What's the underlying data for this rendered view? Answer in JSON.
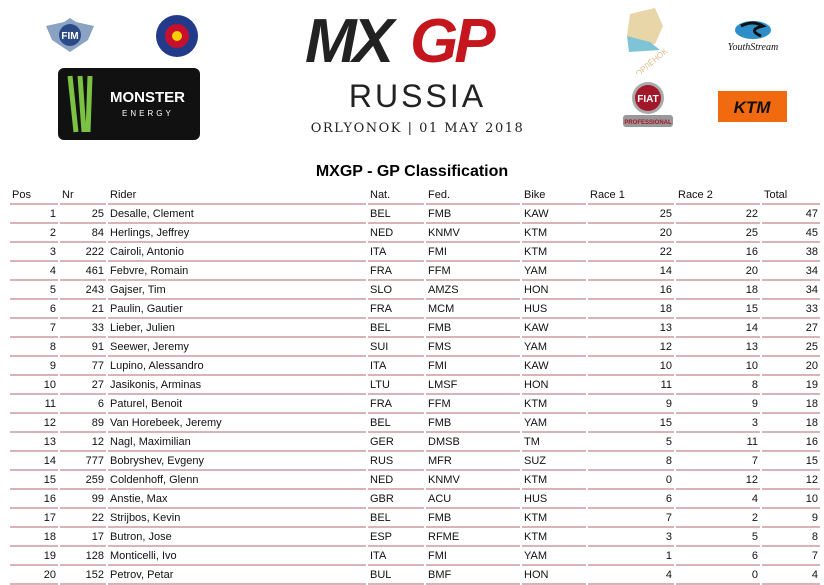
{
  "header": {
    "logo_text": "MXGP",
    "country": "RUSSIA",
    "venue_date": "ORLYONOK | 01 MAY 2018",
    "sponsors": [
      "FIM",
      "Monster Energy",
      "Orlyonok",
      "YouthStream",
      "Fiat Professional",
      "KTM"
    ]
  },
  "title": "MXGP - GP Classification",
  "columns": [
    "Pos",
    "Nr",
    "Rider",
    "Nat.",
    "Fed.",
    "Bike",
    "Race 1",
    "Race 2",
    "Total"
  ],
  "rows": [
    [
      "1",
      "25",
      "Desalle, Clement",
      "BEL",
      "FMB",
      "KAW",
      "25",
      "22",
      "47"
    ],
    [
      "2",
      "84",
      "Herlings, Jeffrey",
      "NED",
      "KNMV",
      "KTM",
      "20",
      "25",
      "45"
    ],
    [
      "3",
      "222",
      "Cairoli, Antonio",
      "ITA",
      "FMI",
      "KTM",
      "22",
      "16",
      "38"
    ],
    [
      "4",
      "461",
      "Febvre, Romain",
      "FRA",
      "FFM",
      "YAM",
      "14",
      "20",
      "34"
    ],
    [
      "5",
      "243",
      "Gajser, Tim",
      "SLO",
      "AMZS",
      "HON",
      "16",
      "18",
      "34"
    ],
    [
      "6",
      "21",
      "Paulin, Gautier",
      "FRA",
      "MCM",
      "HUS",
      "18",
      "15",
      "33"
    ],
    [
      "7",
      "33",
      "Lieber, Julien",
      "BEL",
      "FMB",
      "KAW",
      "13",
      "14",
      "27"
    ],
    [
      "8",
      "91",
      "Seewer, Jeremy",
      "SUI",
      "FMS",
      "YAM",
      "12",
      "13",
      "25"
    ],
    [
      "9",
      "77",
      "Lupino, Alessandro",
      "ITA",
      "FMI",
      "KAW",
      "10",
      "10",
      "20"
    ],
    [
      "10",
      "27",
      "Jasikonis, Arminas",
      "LTU",
      "LMSF",
      "HON",
      "11",
      "8",
      "19"
    ],
    [
      "11",
      "6",
      "Paturel, Benoit",
      "FRA",
      "FFM",
      "KTM",
      "9",
      "9",
      "18"
    ],
    [
      "12",
      "89",
      "Van Horebeek, Jeremy",
      "BEL",
      "FMB",
      "YAM",
      "15",
      "3",
      "18"
    ],
    [
      "13",
      "12",
      "Nagl, Maximilian",
      "GER",
      "DMSB",
      "TM",
      "5",
      "11",
      "16"
    ],
    [
      "14",
      "777",
      "Bobryshev, Evgeny",
      "RUS",
      "MFR",
      "SUZ",
      "8",
      "7",
      "15"
    ],
    [
      "15",
      "259",
      "Coldenhoff, Glenn",
      "NED",
      "KNMV",
      "KTM",
      "0",
      "12",
      "12"
    ],
    [
      "16",
      "99",
      "Anstie, Max",
      "GBR",
      "ACU",
      "HUS",
      "6",
      "4",
      "10"
    ],
    [
      "17",
      "22",
      "Strijbos, Kevin",
      "BEL",
      "FMB",
      "KTM",
      "7",
      "2",
      "9"
    ],
    [
      "18",
      "17",
      "Butron, Jose",
      "ESP",
      "RFME",
      "KTM",
      "3",
      "5",
      "8"
    ],
    [
      "19",
      "128",
      "Monticelli, Ivo",
      "ITA",
      "FMI",
      "YAM",
      "1",
      "6",
      "7"
    ],
    [
      "20",
      "152",
      "Petrov, Petar",
      "BUL",
      "BMF",
      "HON",
      "4",
      "0",
      "4"
    ]
  ]
}
